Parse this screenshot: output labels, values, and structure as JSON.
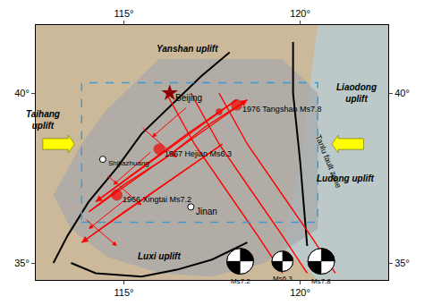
{
  "chart_data": {
    "type": "map",
    "xlim": [
      112.5,
      122.5
    ],
    "ylim": [
      34.5,
      42.0
    ],
    "xticks": [
      {
        "value": 115,
        "label": "115°"
      },
      {
        "value": 120,
        "label": "120°"
      }
    ],
    "yticks": [
      {
        "value": 35,
        "label": "35°"
      },
      {
        "value": 40,
        "label": "40°"
      }
    ],
    "grid": false,
    "color": "#cbb99a",
    "series": [
      {
        "type": "area",
        "color": "#b8cfd8",
        "x": [
          120.5,
          122.5,
          122.5,
          120.5,
          119.5,
          120.0,
          120.5
        ],
        "y": [
          42.0,
          42.0,
          34.5,
          34.5,
          35.5,
          38.0,
          42.0
        ]
      },
      {
        "type": "area",
        "color": "#a8a8a8",
        "x": [
          113.8,
          114.5,
          115.5,
          116.0,
          119.5,
          120.5,
          120.5,
          119.0,
          117.5,
          116.0,
          114.5,
          113.5,
          113.0,
          113.8
        ],
        "y": [
          38.5,
          39.5,
          40.5,
          41.0,
          41.0,
          40.0,
          36.0,
          35.0,
          34.6,
          34.7,
          35.2,
          36.0,
          37.0,
          38.5
        ]
      },
      {
        "type": "rectangle",
        "color": "#4499cc",
        "line_style": "dashed",
        "x": [
          113.8,
          120.5
        ],
        "y": [
          36.2,
          40.3
        ]
      },
      {
        "type": "line",
        "color": "black",
        "x": [
          113.0,
          113.4,
          114.0,
          114.8,
          115.5,
          116.5,
          117.2,
          118.0
        ],
        "y": [
          35.0,
          35.8,
          36.8,
          37.8,
          38.8,
          39.8,
          40.5,
          41.2
        ]
      },
      {
        "type": "line",
        "color": "black",
        "x": [
          119.8,
          119.8,
          120.0,
          120.2
        ],
        "y": [
          41.5,
          40.0,
          38.0,
          35.5
        ]
      },
      {
        "type": "line",
        "color": "black",
        "x": [
          113.5,
          114.2,
          115.5,
          116.5,
          117.5,
          118.5
        ],
        "y": [
          35.0,
          34.7,
          34.6,
          34.8,
          35.1,
          35.6
        ]
      },
      {
        "type": "line",
        "color": "red",
        "x": [
          119.5,
          118.8,
          118.0,
          117.0,
          116.2
        ],
        "y": [
          34.7,
          35.8,
          37.0,
          38.5,
          40.0
        ]
      },
      {
        "type": "line",
        "color": "red",
        "x": [
          120.2,
          119.5,
          118.7,
          117.7,
          116.9
        ],
        "y": [
          34.7,
          35.8,
          37.0,
          38.5,
          40.0
        ]
      },
      {
        "type": "line",
        "color": "red",
        "x": [
          121.0,
          120.3,
          119.5,
          118.5,
          117.7
        ],
        "y": [
          34.7,
          35.8,
          37.0,
          38.5,
          40.0
        ]
      },
      {
        "type": "line",
        "color": "red",
        "marker": "arrow",
        "x": [
          114.0,
          115.0,
          116.2,
          117.3,
          118.5
        ],
        "y": [
          36.5,
          37.3,
          38.1,
          39.0,
          39.8
        ]
      },
      {
        "type": "line",
        "color": "red",
        "marker": "arrow",
        "x": [
          118.2,
          116.8,
          115.5,
          114.2
        ],
        "y": [
          39.8,
          38.8,
          37.8,
          36.8
        ]
      },
      {
        "type": "line",
        "color": "red",
        "marker": "arrow",
        "x": [
          117.8,
          116.4,
          115.0,
          113.8
        ],
        "y": [
          38.5,
          37.5,
          36.5,
          35.6
        ]
      },
      {
        "type": "arrows",
        "color": "red",
        "x1": [
          116.8,
          115.5,
          115.8,
          114.5,
          115.2,
          113.9
        ],
        "y1": [
          39.6,
          39.0,
          38.3,
          37.6,
          37.0,
          36.3
        ],
        "x2": [
          115.8,
          116.5,
          114.7,
          115.5,
          114.0,
          114.8
        ],
        "y2": [
          38.7,
          38.1,
          37.3,
          36.7,
          36.0,
          35.5
        ]
      },
      {
        "type": "block_arrow",
        "color": "yellow",
        "x": [
          112.7,
          121.8
        ],
        "y": [
          38.5,
          38.5
        ],
        "dx": [
          0.9,
          -0.9
        ]
      },
      {
        "type": "scatter",
        "color": "red",
        "marker": "circle",
        "x": [
          114.8,
          116.0,
          118.2,
          117.7
        ],
        "y": [
          37.0,
          38.35,
          39.65,
          39.45
        ],
        "labels": [
          "1966 Xingtai Ms7.2",
          "1967 Hejian Ms6.3",
          "1976 Tangshan Ms7.8",
          null
        ]
      },
      {
        "type": "scatter",
        "color": "#8B0000",
        "marker": "star",
        "x": [
          116.3
        ],
        "y": [
          40.0
        ],
        "labels": [
          "Beijing"
        ]
      },
      {
        "type": "scatter",
        "color": "black",
        "marker": "open_circle",
        "x": [
          114.4,
          116.9
        ],
        "y": [
          38.05,
          36.65
        ],
        "labels": [
          "Shijiazhuang",
          "Jinan"
        ]
      },
      {
        "type": "beachball",
        "x": [
          118.3,
          119.5,
          120.6
        ],
        "y": [
          35.05,
          35.05,
          35.05
        ],
        "r": [
          0.38,
          0.3,
          0.38
        ],
        "labels": [
          "Ms7.2",
          "Ms6.3",
          "Ms7.8"
        ]
      }
    ],
    "annotations": [
      {
        "type": "region",
        "text": "Yanshan uplift",
        "x": 116.8,
        "y": 41.3
      },
      {
        "type": "region",
        "text": "Taihang\nuplift",
        "x": 112.7,
        "y": 39.2
      },
      {
        "type": "region",
        "text": "Liaodong\nuplift",
        "x": 121.6,
        "y": 40.0
      },
      {
        "type": "region",
        "text": "Ludong uplift",
        "x": 121.3,
        "y": 37.5
      },
      {
        "type": "region",
        "text": "Luxi uplift",
        "x": 116.0,
        "y": 35.2
      },
      {
        "type": "fault",
        "text": "Tanlu fault zone",
        "x": 120.8,
        "y": 38.0
      }
    ]
  }
}
